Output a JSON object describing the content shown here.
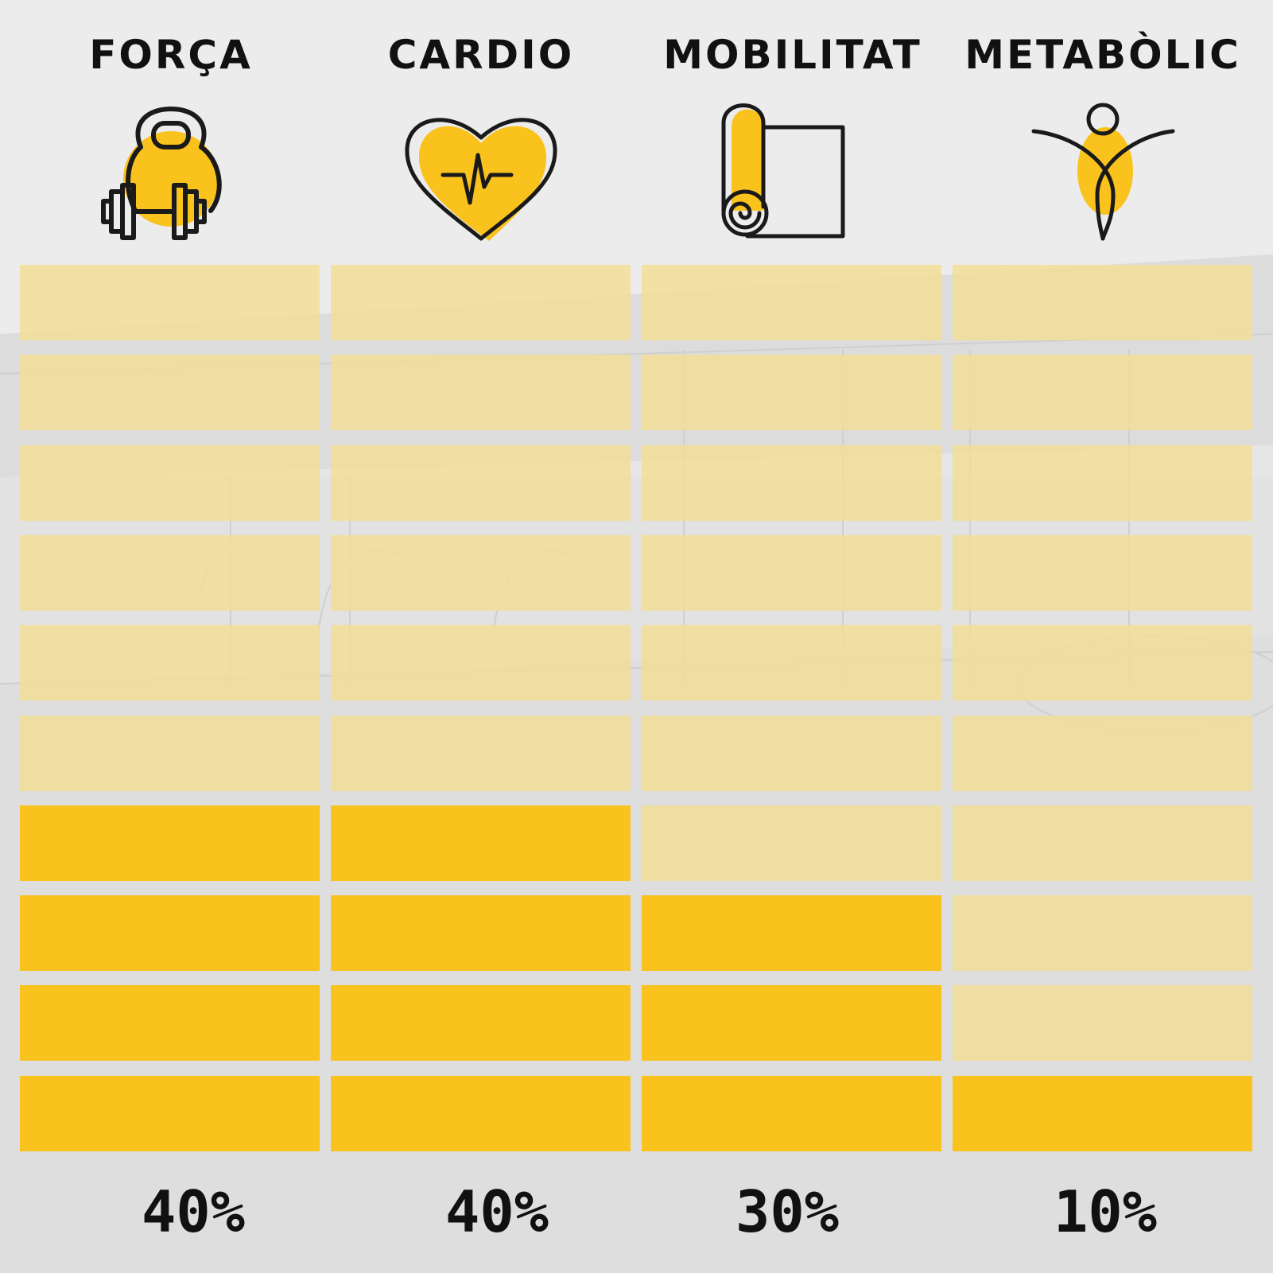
{
  "chart_data": {
    "type": "bar",
    "categories": [
      "FORÇA",
      "CARDIO",
      "MOBILITAT",
      "METABÒLIC"
    ],
    "values": [
      40,
      40,
      30,
      10
    ],
    "value_labels": [
      "40%",
      "40%",
      "30%",
      "10%"
    ],
    "ylim": [
      0,
      100
    ],
    "blocks_per_column": 10,
    "grid": false
  },
  "icons": [
    "kettlebell-dumbbell-icon",
    "heart-pulse-icon",
    "yoga-mat-icon",
    "person-figure-icon"
  ],
  "colors": {
    "filled": "#f9c21c",
    "empty": "#f3dd94",
    "text": "#111111",
    "icon_stroke": "#1a1a1a",
    "background": "#e4e4e4"
  }
}
